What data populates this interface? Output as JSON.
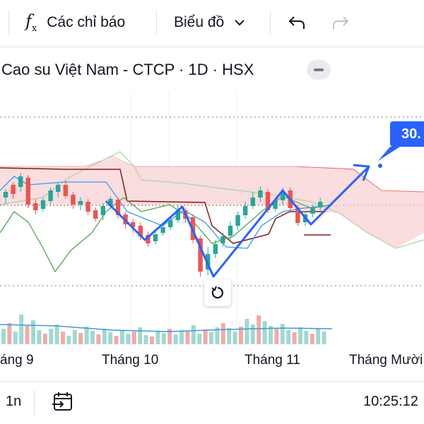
{
  "toolbar": {
    "indicators_icon": "fx-icon",
    "indicators_label": "Các chỉ báo",
    "chart_type_label": "Biểu đồ",
    "undo_icon": "undo-icon",
    "redo_icon": "redo-icon"
  },
  "symbol": {
    "title": "Cao su Việt Nam - CTCP · 1D · HSX"
  },
  "drawing": {
    "price_tag": "30."
  },
  "xaxis": {
    "labels": [
      "áng 9",
      "Tháng 10",
      "Tháng 11",
      "Tháng Mười"
    ]
  },
  "bottom": {
    "interval": "1n",
    "goto_icon": "go-to-date-icon",
    "time": "10:25:12"
  },
  "colors": {
    "up": "#26a69a",
    "down": "#ef5350",
    "accent": "#2962ff",
    "cloud_fill": "#f8cfd0",
    "cloud_green": "#a5d6a7"
  }
}
